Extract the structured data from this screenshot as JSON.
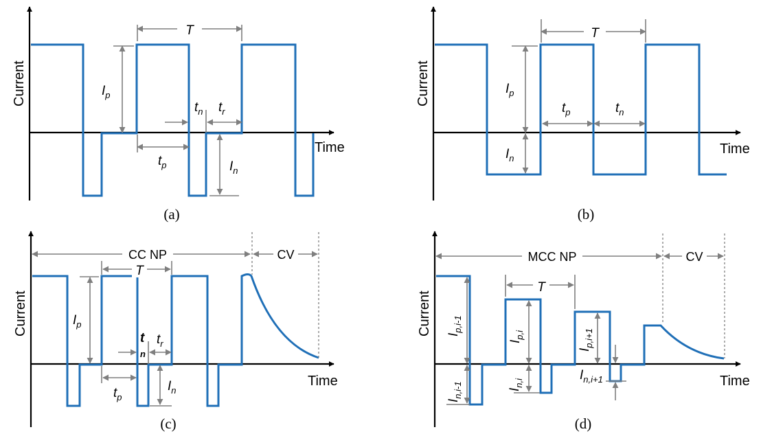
{
  "panels": [
    {
      "caption": "(a)",
      "y_axis": "Current",
      "x_axis": "Time",
      "labels": {
        "T": "T",
        "Ip_main": "I",
        "Ip_sub": "p",
        "In_main": "I",
        "In_sub": "n",
        "tp_main": "t",
        "tp_sub": "p",
        "tn_main": "t",
        "tn_sub": "n",
        "tr_main": "t",
        "tr_sub": "r"
      }
    },
    {
      "caption": "(b)",
      "y_axis": "Current",
      "x_axis": "Time",
      "labels": {
        "T": "T",
        "Ip_main": "I",
        "Ip_sub": "p",
        "In_main": "I",
        "In_sub": "n",
        "tp_main": "t",
        "tp_sub": "p",
        "tn_main": "t",
        "tn_sub": "n"
      }
    },
    {
      "caption": "(c)",
      "y_axis": "Current",
      "x_axis": "Time",
      "labels": {
        "phase1": "CC NP",
        "phase2": "CV",
        "T": "T",
        "Ip_main": "I",
        "Ip_sub": "p",
        "In_main": "I",
        "In_sub": "n",
        "tp_main": "t",
        "tp_sub": "p",
        "tn_main": "t",
        "tn_sub": "n",
        "tr_main": "t",
        "tr_sub": "r"
      }
    },
    {
      "caption": "(d)",
      "y_axis": "Current",
      "x_axis": "Time",
      "labels": {
        "phase1": "MCC NP",
        "phase2": "CV",
        "T": "T",
        "Ip1_main": "I",
        "Ip1_sub": "p,i-1",
        "Ip2_main": "I",
        "Ip2_sub": "p,i",
        "Ip3_main": "I",
        "Ip3_sub": "p,i+1",
        "In1_main": "I",
        "In1_sub": "n,i-1",
        "In2_main": "I",
        "In2_sub": "n,i",
        "In3_main": "I",
        "In3_sub": "n,i+1"
      }
    }
  ],
  "colors": {
    "waveform": "#1f6fb7",
    "axis": "#000000",
    "dimension": "#7f7f7f"
  }
}
